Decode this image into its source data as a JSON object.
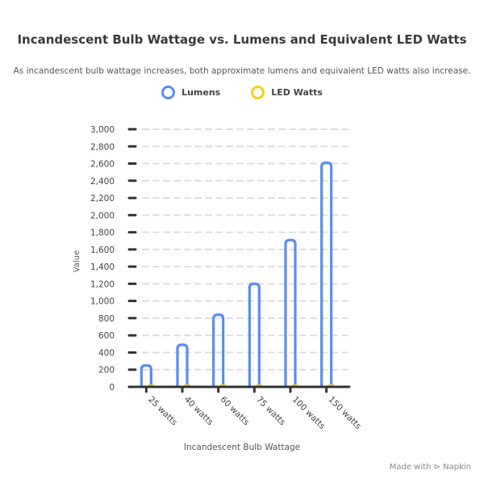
{
  "chart_data": {
    "type": "bar",
    "title": "Incandescent Bulb Wattage vs. Lumens and Equivalent LED Watts",
    "subtitle": "As incandescent bulb wattage increases, both approximate lumens and equivalent LED watts also increase.",
    "xlabel": "Incandescent Bulb Wattage",
    "ylabel": "Value",
    "ylim": [
      0,
      3000
    ],
    "yticks": [
      0,
      200,
      400,
      600,
      800,
      1000,
      1200,
      1400,
      1600,
      1800,
      2000,
      2200,
      2400,
      2600,
      2800,
      3000
    ],
    "ytick_labels": [
      "0",
      "200",
      "400",
      "600",
      "800",
      "1,000",
      "1,200",
      "1,400",
      "1,600",
      "1,800",
      "2,000",
      "2,200",
      "2,400",
      "2,600",
      "2,800",
      "3,000"
    ],
    "categories": [
      "25 watts",
      "40 watts",
      "60 watts",
      "75 watts",
      "100 watts",
      "150 watts"
    ],
    "series": [
      {
        "name": "Lumens",
        "color": "#5b8def",
        "values": [
          250,
          490,
          840,
          1200,
          1710,
          2610
        ]
      },
      {
        "name": "LED Watts",
        "color": "#f2d21b",
        "values": [
          4,
          6,
          9,
          12,
          16,
          22
        ]
      }
    ],
    "grid": true,
    "legend_position": "top-center"
  },
  "footer": {
    "credit": "Made with ⊳ Napkin"
  }
}
